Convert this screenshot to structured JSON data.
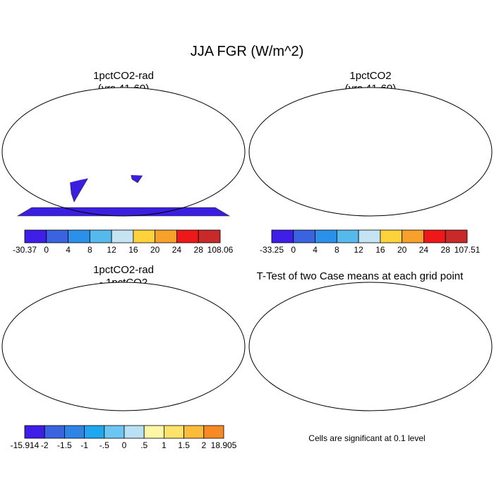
{
  "figure": {
    "title": "JJA FGR (W/m^2)",
    "note": "Cells are significant at 0.1 level"
  },
  "colors": {
    "scale1": [
      "#3f1fe8",
      "#3a63e0",
      "#2b90ea",
      "#55b9ec",
      "#c4e4f4",
      "#fdd23a",
      "#f7a12c",
      "#ee1818",
      "#c82a2a"
    ],
    "diff": [
      "#3f1fe8",
      "#3a63e0",
      "#2f85e6",
      "#1fa8f0",
      "#6cc6f2",
      "#b9e0f4",
      "#fff6a6",
      "#fde36a",
      "#fbbb3b",
      "#f88a26",
      "#f2501c",
      "#e51616",
      "#c4272d"
    ],
    "land_blue": "#4f7de4",
    "land_deep": "#3a1fe0",
    "sig_red": "#ee1a1a"
  },
  "chart_data": [
    {
      "type": "heatmap",
      "title": "1pctCO2-rad",
      "subtitle": "(yrs 41-60)",
      "colorbar_labels": [
        "-30.37",
        "0",
        "4",
        "8",
        "12",
        "16",
        "20",
        "24",
        "28",
        "108.06"
      ],
      "range": [
        -30.37,
        108.06
      ]
    },
    {
      "type": "heatmap",
      "title": "1pctCO2",
      "subtitle": "(yrs 41-60)",
      "colorbar_labels": [
        "-33.25",
        "0",
        "4",
        "8",
        "12",
        "16",
        "20",
        "24",
        "28",
        "107.51"
      ],
      "range": [
        -33.25,
        107.51
      ]
    },
    {
      "type": "heatmap",
      "title": "1pctCO2-rad",
      "subtitle": "- 1pctCO2",
      "colorbar_labels": [
        "-15.914",
        "-2",
        "-1.5",
        "-1",
        "-.5",
        "0",
        ".5",
        "1",
        "1.5",
        "2",
        "18.905"
      ],
      "range": [
        -15.914,
        18.905
      ]
    },
    {
      "type": "heatmap",
      "title": "T-Test of two Case means at each grid point",
      "subtitle": ""
    }
  ]
}
